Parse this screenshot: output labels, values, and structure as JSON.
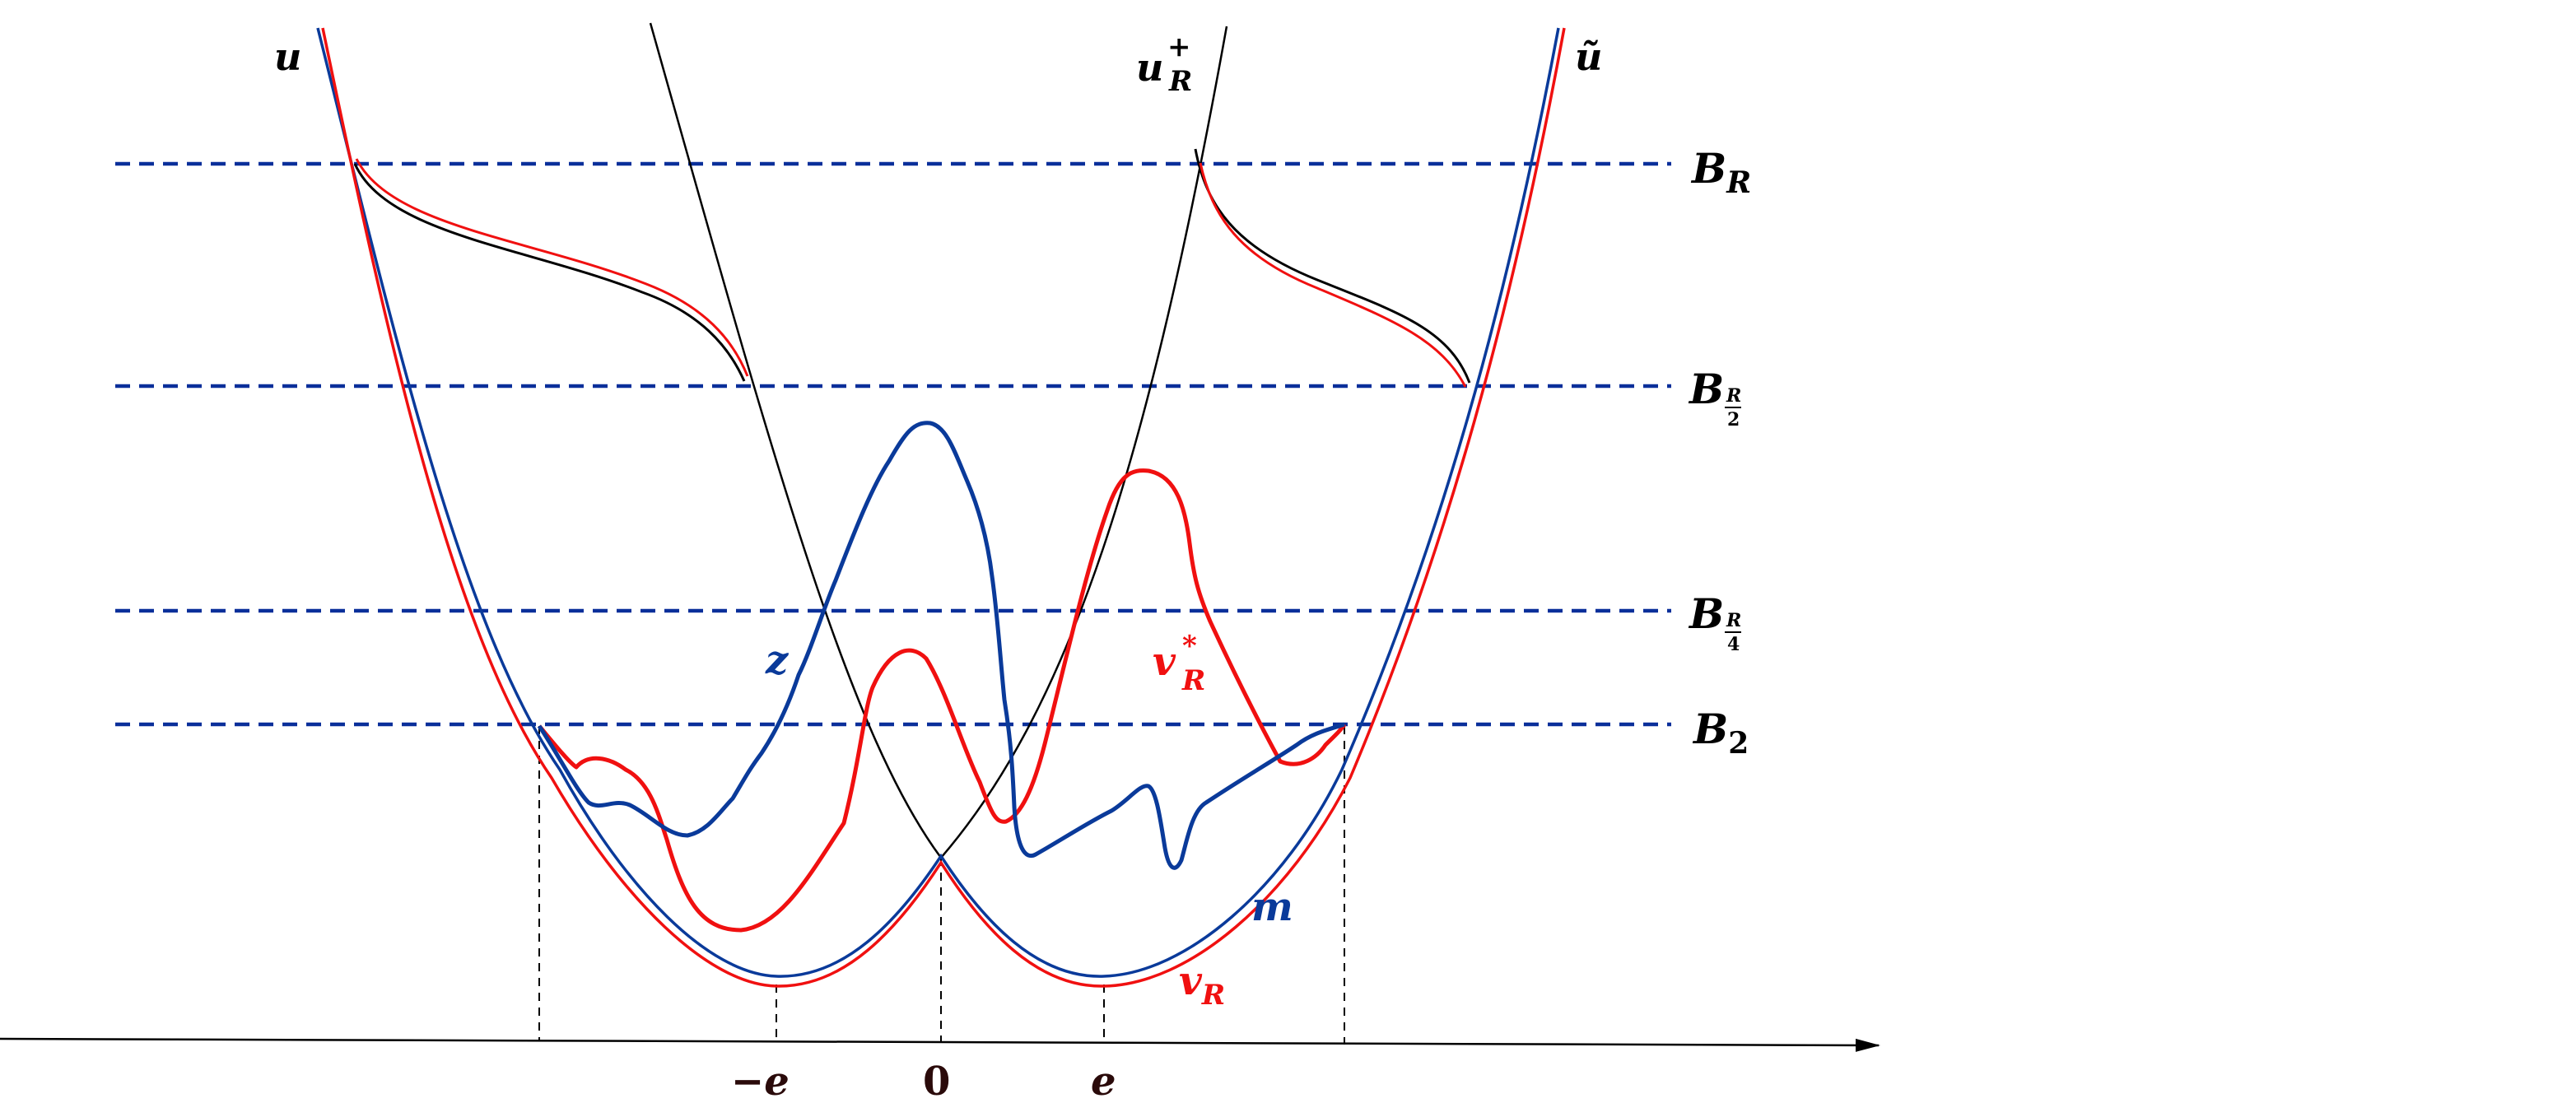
{
  "colors": {
    "black": "#000000",
    "blue": "#0a3a9a",
    "red": "#f01010",
    "dash_blue": "#0a2f9a",
    "axis_label": "#2a0a0a"
  },
  "labels": {
    "u": "u",
    "u_R_plus": {
      "base": "u",
      "sup": "+",
      "sub": "R"
    },
    "u_tilde": "ũ",
    "B_R": {
      "base": "B",
      "sub": "R"
    },
    "B_R2": {
      "base": "B",
      "num": "R",
      "den": "2"
    },
    "B_R4": {
      "base": "B",
      "num": "R",
      "den": "4"
    },
    "B_2": {
      "base": "B",
      "sub": "2"
    },
    "z": "z",
    "v_R_star": {
      "base": "v",
      "sup": "*",
      "sub": "R"
    },
    "m": "m",
    "v_R": {
      "base": "v",
      "sub": "R"
    },
    "neg_e": "−e",
    "zero": "0",
    "e": "e"
  }
}
